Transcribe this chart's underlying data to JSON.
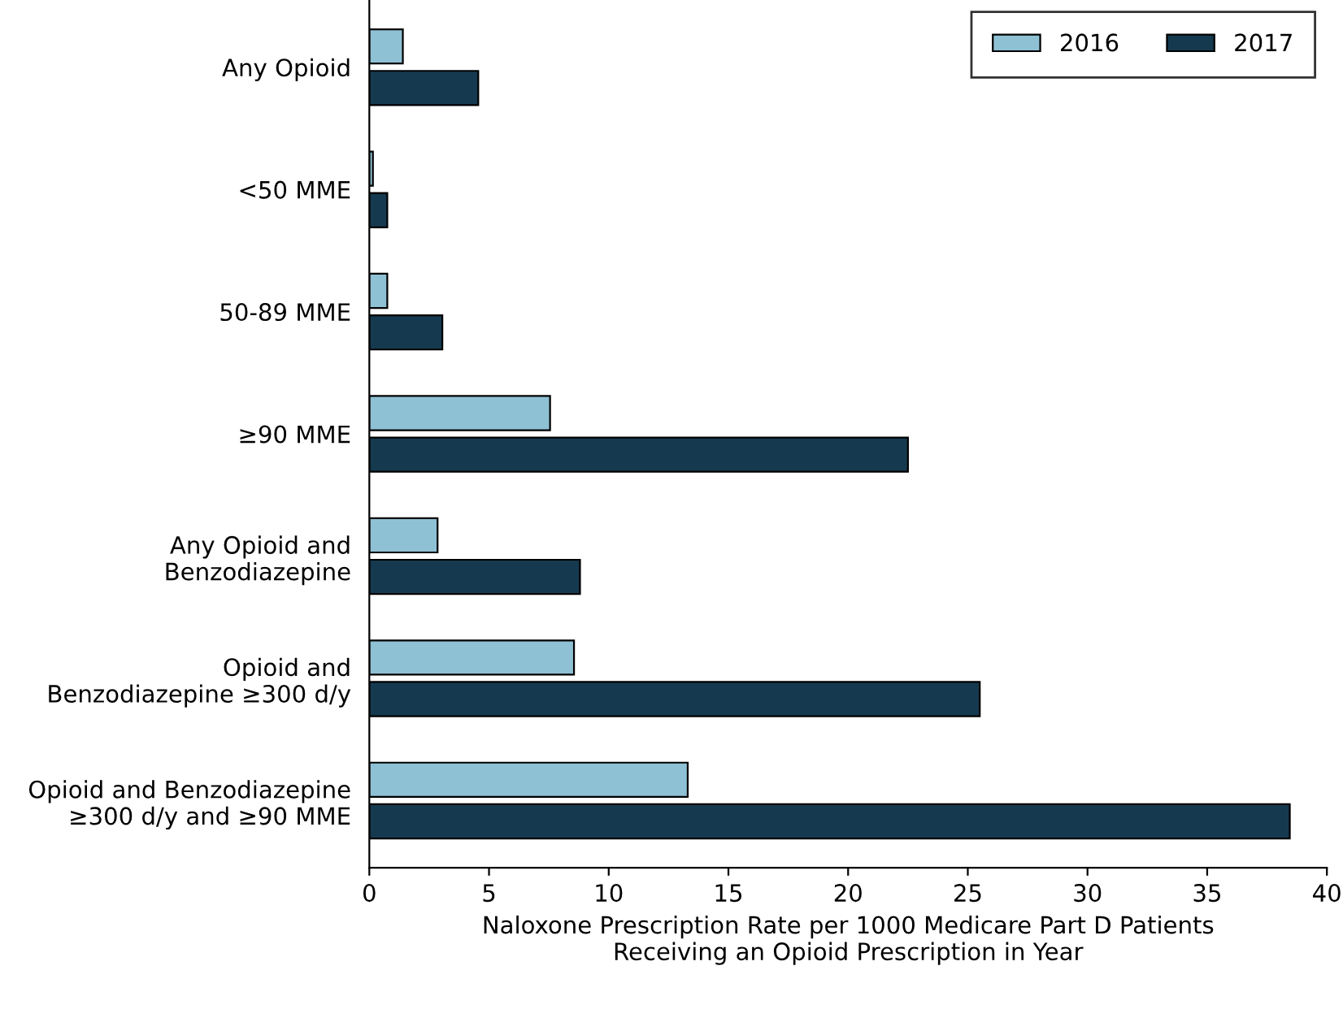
{
  "chart_data": {
    "type": "bar",
    "orientation": "horizontal",
    "xlabel": "Naloxone Prescription Rate per 1000 Medicare Part D Patients\nReceiving an Opioid Prescription in Year",
    "categories": [
      "Any Opioid",
      "<50 MME",
      "50-89 MME",
      "≥90 MME",
      "Any Opioid and\nBenzodiazepine",
      "Opioid and\nBenzodiazepine ≥300 d/y",
      "Opioid and Benzodiazepine\n≥300 d/y and ≥90 MME"
    ],
    "series": [
      {
        "name": "2016",
        "color": "#8fc1d4",
        "values": [
          1.4,
          0.15,
          0.75,
          7.55,
          2.85,
          8.55,
          13.3
        ]
      },
      {
        "name": "2017",
        "color": "#153a4f",
        "values": [
          4.55,
          0.75,
          3.05,
          22.5,
          8.8,
          25.5,
          38.45
        ]
      }
    ],
    "xlim": [
      0,
      40
    ],
    "xticks": [
      0,
      5,
      10,
      15,
      20,
      25,
      30,
      35,
      40
    ],
    "grid": false,
    "legend": "top right"
  }
}
